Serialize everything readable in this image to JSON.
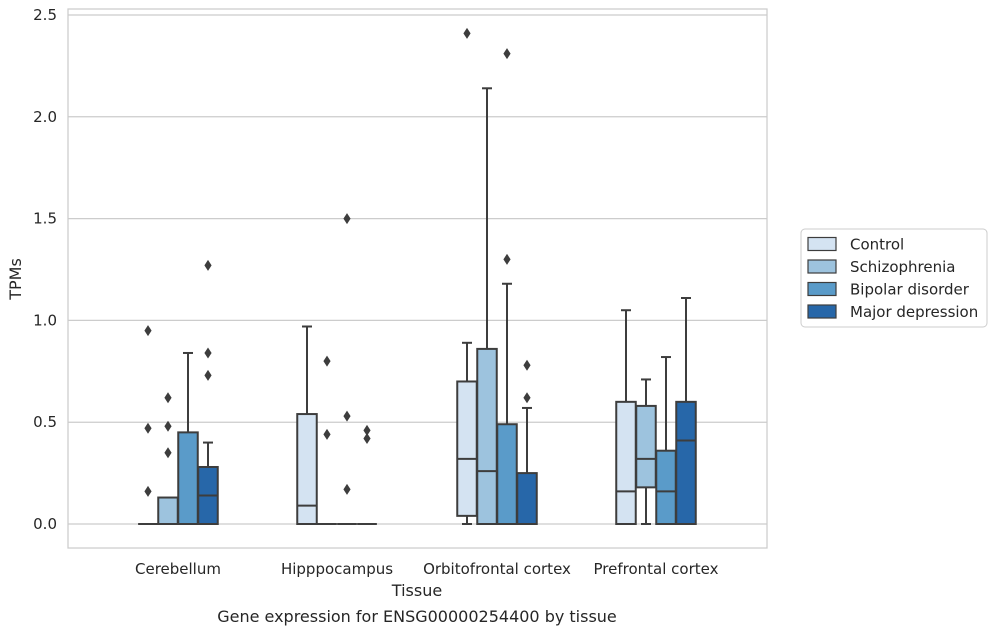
{
  "chart_data": {
    "type": "box",
    "xlabel": "Tissue",
    "ylabel": "TPMs",
    "caption": "Gene expression for ENSG00000254400 by tissue",
    "ylim": [
      -0.12,
      2.54
    ],
    "yticks": [
      "0.0",
      "0.5",
      "1.0",
      "1.5",
      "2.0",
      "2.5"
    ],
    "ytick_values": [
      0,
      0.5,
      1.0,
      1.5,
      2.0,
      2.5
    ],
    "grid": "horizontal",
    "legend_position": "right",
    "categories": [
      "Cerebellum",
      "Hipppocampus",
      "Orbitofrontal cortex",
      "Prefrontal cortex"
    ],
    "series": [
      {
        "name": "Control",
        "color": "#d4e3f2",
        "boxes": [
          {
            "whislo": 0,
            "q1": 0,
            "med": 0,
            "q3": 0,
            "whishi": 0,
            "fliers": [
              0.95,
              0.47,
              0.16
            ]
          },
          {
            "whislo": 0,
            "q1": 0,
            "med": 0.09,
            "q3": 0.54,
            "whishi": 0.97,
            "fliers": []
          },
          {
            "whislo": 0,
            "q1": 0.04,
            "med": 0.32,
            "q3": 0.7,
            "whishi": 0.89,
            "fliers": [
              2.41
            ]
          },
          {
            "whislo": 0,
            "q1": 0,
            "med": 0.16,
            "q3": 0.6,
            "whishi": 1.05,
            "fliers": []
          }
        ]
      },
      {
        "name": "Schizophrenia",
        "color": "#9dc3de",
        "boxes": [
          {
            "whislo": 0,
            "q1": 0,
            "med": 0,
            "q3": 0.13,
            "whishi": 0.13,
            "fliers": [
              0.62,
              0.48,
              0.35
            ]
          },
          {
            "whislo": 0,
            "q1": 0,
            "med": 0,
            "q3": 0,
            "whishi": 0,
            "fliers": [
              0.8,
              0.44
            ]
          },
          {
            "whislo": 0,
            "q1": 0,
            "med": 0.26,
            "q3": 0.86,
            "whishi": 2.14,
            "fliers": []
          },
          {
            "whislo": 0,
            "q1": 0.18,
            "med": 0.32,
            "q3": 0.58,
            "whishi": 0.71,
            "fliers": []
          }
        ]
      },
      {
        "name": "Bipolar disorder",
        "color": "#5a9bc9",
        "boxes": [
          {
            "whislo": 0,
            "q1": 0,
            "med": 0,
            "q3": 0.45,
            "whishi": 0.84,
            "fliers": []
          },
          {
            "whislo": 0,
            "q1": 0,
            "med": 0,
            "q3": 0,
            "whishi": 0,
            "fliers": [
              1.5,
              0.53,
              0.17
            ]
          },
          {
            "whislo": 0,
            "q1": 0,
            "med": 0,
            "q3": 0.49,
            "whishi": 1.18,
            "fliers": [
              2.31,
              1.3
            ]
          },
          {
            "whislo": 0,
            "q1": 0,
            "med": 0.16,
            "q3": 0.36,
            "whishi": 0.82,
            "fliers": []
          }
        ]
      },
      {
        "name": "Major depression",
        "color": "#2767a9",
        "boxes": [
          {
            "whislo": 0,
            "q1": 0,
            "med": 0.14,
            "q3": 0.28,
            "whishi": 0.4,
            "fliers": [
              1.27,
              0.84,
              0.73
            ]
          },
          {
            "whislo": 0,
            "q1": 0,
            "med": 0,
            "q3": 0,
            "whishi": 0,
            "fliers": [
              0.46,
              0.42
            ]
          },
          {
            "whislo": 0,
            "q1": 0,
            "med": 0,
            "q3": 0.25,
            "whishi": 0.57,
            "fliers": [
              0.78,
              0.62
            ]
          },
          {
            "whislo": 0,
            "q1": 0,
            "med": 0.41,
            "q3": 0.6,
            "whishi": 1.11,
            "fliers": []
          }
        ]
      }
    ]
  }
}
